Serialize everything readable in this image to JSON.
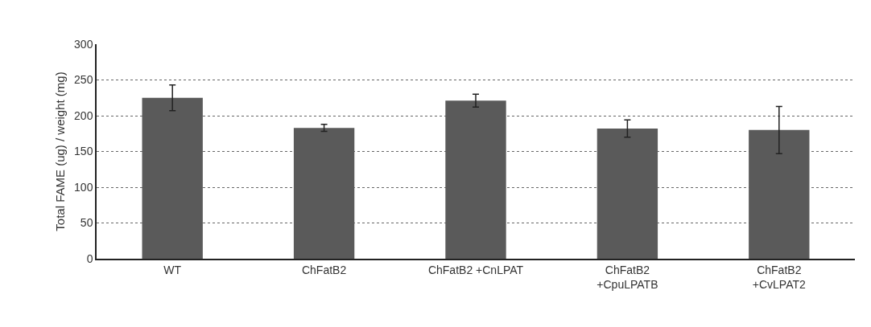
{
  "chart_data": {
    "type": "bar",
    "ylabel": "Total FAME (ug) / weight (mg)",
    "categories": [
      "WT",
      "ChFatB2",
      "ChFatB2 +CnLPAT",
      "ChFatB2\n+CpuLPATB",
      "ChFatB2\n+CvLPAT2"
    ],
    "values": [
      225,
      183,
      221,
      182,
      180
    ],
    "errors": [
      18,
      5,
      9,
      12,
      33
    ],
    "color": "#5a5a5a",
    "ylim": [
      0,
      300
    ],
    "yticks": [
      0,
      50,
      100,
      150,
      200,
      250,
      300
    ],
    "grid": "y"
  }
}
